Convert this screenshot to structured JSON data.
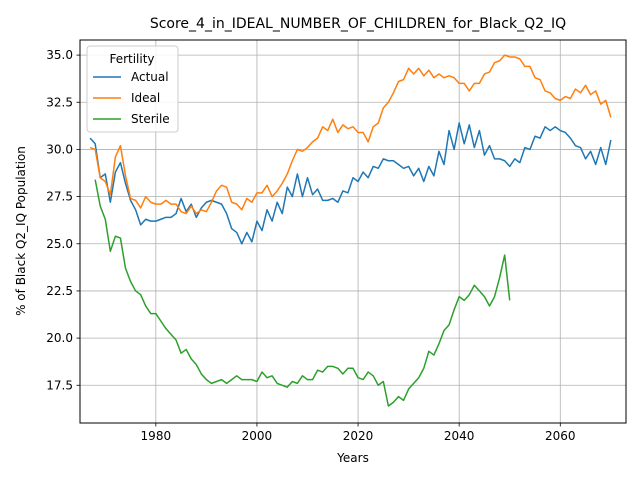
{
  "chart_data": {
    "type": "line",
    "title": "Score_4_in_IDEAL_NUMBER_OF_CHILDREN_for_Black_Q2_IQ",
    "xlabel": "Years",
    "ylabel": "% of Black Q2_IQ Population",
    "xlim": [
      1965,
      2073
    ],
    "ylim": [
      15.5,
      35.8
    ],
    "xticks": [
      1980,
      2000,
      2020,
      2040,
      2060
    ],
    "yticks": [
      17.5,
      20.0,
      22.5,
      25.0,
      27.5,
      30.0,
      32.5,
      35.0
    ],
    "xtick_labels": [
      "1980",
      "2000",
      "2020",
      "2040",
      "2060"
    ],
    "ytick_labels": [
      "17.5",
      "20.0",
      "22.5",
      "25.0",
      "27.5",
      "30.0",
      "32.5",
      "35.0"
    ],
    "grid": true,
    "legend": {
      "title": "Fertility",
      "position": "top-left"
    },
    "series": [
      {
        "name": "Actual",
        "color": "#1f77b4",
        "x": [
          1967,
          1968,
          1969,
          1970,
          1971,
          1972,
          1973,
          1974,
          1975,
          1976,
          1977,
          1978,
          1979,
          1980,
          1981,
          1982,
          1983,
          1984,
          1985,
          1986,
          1987,
          1988,
          1989,
          1990,
          1991,
          1992,
          1993,
          1994,
          1995,
          1996,
          1997,
          1998,
          1999,
          2000,
          2001,
          2002,
          2003,
          2004,
          2005,
          2006,
          2007,
          2008,
          2009,
          2010,
          2011,
          2012,
          2013,
          2014,
          2015,
          2016,
          2017,
          2018,
          2019,
          2020,
          2021,
          2022,
          2023,
          2024,
          2025,
          2026,
          2027,
          2028,
          2029,
          2030,
          2031,
          2032,
          2033,
          2034,
          2035,
          2036,
          2037,
          2038,
          2039,
          2040,
          2041,
          2042,
          2043,
          2044,
          2045,
          2046,
          2047,
          2048,
          2049,
          2050,
          2051,
          2052,
          2053,
          2054,
          2055,
          2056,
          2057,
          2058,
          2059,
          2060,
          2061,
          2062,
          2063,
          2064,
          2065,
          2066,
          2067,
          2068,
          2069,
          2070
        ],
        "values": [
          30.6,
          30.3,
          28.5,
          28.7,
          27.2,
          28.8,
          29.3,
          28.2,
          27.3,
          26.8,
          26.0,
          26.3,
          26.2,
          26.2,
          26.3,
          26.4,
          26.4,
          26.6,
          27.4,
          26.7,
          27.1,
          26.4,
          26.9,
          27.2,
          27.3,
          27.2,
          27.1,
          26.6,
          25.8,
          25.6,
          25.0,
          25.6,
          25.1,
          26.2,
          25.7,
          26.8,
          26.2,
          27.2,
          26.6,
          28.0,
          27.5,
          28.7,
          27.5,
          28.5,
          27.6,
          27.9,
          27.3,
          27.3,
          27.4,
          27.2,
          27.8,
          27.7,
          28.5,
          28.3,
          28.8,
          28.5,
          29.1,
          29.0,
          29.5,
          29.4,
          29.4,
          29.2,
          29.0,
          29.1,
          28.6,
          29.0,
          28.3,
          29.1,
          28.6,
          29.9,
          29.2,
          31.0,
          30.0,
          31.4,
          30.3,
          31.3,
          30.1,
          31.0,
          29.7,
          30.2,
          29.5,
          29.5,
          29.4,
          29.1,
          29.5,
          29.3,
          30.1,
          30.0,
          30.7,
          30.6,
          31.2,
          31.0,
          31.2,
          31.0,
          30.9,
          30.6,
          30.2,
          30.1,
          29.5,
          29.9,
          29.2,
          30.1,
          29.2,
          30.5
        ]
      },
      {
        "name": "Ideal",
        "color": "#ff7f0e",
        "x": [
          1967,
          1968,
          1969,
          1970,
          1971,
          1972,
          1973,
          1974,
          1975,
          1976,
          1977,
          1978,
          1979,
          1980,
          1981,
          1982,
          1983,
          1984,
          1985,
          1986,
          1987,
          1988,
          1989,
          1990,
          1991,
          1992,
          1993,
          1994,
          1995,
          1996,
          1997,
          1998,
          1999,
          2000,
          2001,
          2002,
          2003,
          2004,
          2005,
          2006,
          2007,
          2008,
          2009,
          2010,
          2011,
          2012,
          2013,
          2014,
          2015,
          2016,
          2017,
          2018,
          2019,
          2020,
          2021,
          2022,
          2023,
          2024,
          2025,
          2026,
          2027,
          2028,
          2029,
          2030,
          2031,
          2032,
          2033,
          2034,
          2035,
          2036,
          2037,
          2038,
          2039,
          2040,
          2041,
          2042,
          2043,
          2044,
          2045,
          2046,
          2047,
          2048,
          2049,
          2050,
          2051,
          2052,
          2053,
          2054,
          2055,
          2056,
          2057,
          2058,
          2059,
          2060,
          2061,
          2062,
          2063,
          2064,
          2065,
          2066,
          2067,
          2068,
          2069,
          2070
        ],
        "values": [
          30.1,
          30.0,
          28.5,
          28.3,
          27.6,
          29.6,
          30.2,
          28.6,
          27.4,
          27.3,
          26.9,
          27.5,
          27.2,
          27.1,
          27.1,
          27.3,
          27.1,
          27.1,
          26.7,
          26.6,
          27.0,
          26.6,
          26.8,
          26.7,
          27.2,
          27.8,
          28.1,
          28.0,
          27.2,
          27.1,
          26.8,
          27.4,
          27.2,
          27.7,
          27.7,
          28.1,
          27.5,
          27.8,
          28.2,
          28.7,
          29.4,
          30.0,
          29.9,
          30.1,
          30.4,
          30.6,
          31.2,
          31.0,
          31.6,
          30.9,
          31.3,
          31.1,
          31.2,
          30.9,
          30.9,
          30.4,
          31.2,
          31.4,
          32.2,
          32.5,
          33.0,
          33.6,
          33.7,
          34.3,
          34.0,
          34.3,
          33.9,
          34.2,
          33.8,
          34.0,
          33.8,
          33.9,
          33.8,
          33.5,
          33.5,
          33.1,
          33.5,
          33.5,
          34.0,
          34.1,
          34.6,
          34.7,
          35.0,
          34.9,
          34.9,
          34.8,
          34.4,
          34.4,
          33.8,
          33.7,
          33.1,
          33.0,
          32.7,
          32.6,
          32.8,
          32.7,
          33.2,
          33.0,
          33.4,
          32.9,
          33.1,
          32.4,
          32.6,
          31.7
        ]
      },
      {
        "name": "Sterile",
        "color": "#2ca02c",
        "x": [
          1968,
          1969,
          1970,
          1971,
          1972,
          1973,
          1974,
          1975,
          1976,
          1977,
          1978,
          1979,
          1980,
          1981,
          1982,
          1983,
          1984,
          1985,
          1986,
          1987,
          1988,
          1989,
          1990,
          1991,
          1992,
          1993,
          1994,
          1995,
          1996,
          1997,
          1998,
          1999,
          2000,
          2001,
          2002,
          2003,
          2004,
          2005,
          2006,
          2007,
          2008,
          2009,
          2010,
          2011,
          2012,
          2013,
          2014,
          2015,
          2016,
          2017,
          2018,
          2019,
          2020,
          2021,
          2022,
          2023,
          2024,
          2025,
          2026,
          2027,
          2028,
          2029,
          2030,
          2031,
          2032,
          2033,
          2034,
          2035,
          2036,
          2037,
          2038,
          2039,
          2040,
          2041,
          2042,
          2043,
          2044,
          2045,
          2046,
          2047,
          2048,
          2049,
          2050
        ],
        "values": [
          28.4,
          27.0,
          26.3,
          24.6,
          25.4,
          25.3,
          23.7,
          23.0,
          22.5,
          22.3,
          21.7,
          21.3,
          21.3,
          20.9,
          20.5,
          20.2,
          19.9,
          19.2,
          19.4,
          18.9,
          18.6,
          18.1,
          17.8,
          17.6,
          17.7,
          17.8,
          17.6,
          17.8,
          18.0,
          17.8,
          17.8,
          17.8,
          17.7,
          18.2,
          17.9,
          18.0,
          17.6,
          17.5,
          17.4,
          17.7,
          17.6,
          18.0,
          17.8,
          17.8,
          18.3,
          18.2,
          18.5,
          18.5,
          18.4,
          18.1,
          18.4,
          18.4,
          17.9,
          17.8,
          18.2,
          18.0,
          17.5,
          17.7,
          16.4,
          16.6,
          16.9,
          16.7,
          17.3,
          17.6,
          17.9,
          18.4,
          19.3,
          19.1,
          19.7,
          20.4,
          20.7,
          21.5,
          22.2,
          22.0,
          22.3,
          22.8,
          22.5,
          22.2,
          21.7,
          22.2,
          23.2,
          24.4,
          22.0
        ]
      }
    ]
  }
}
